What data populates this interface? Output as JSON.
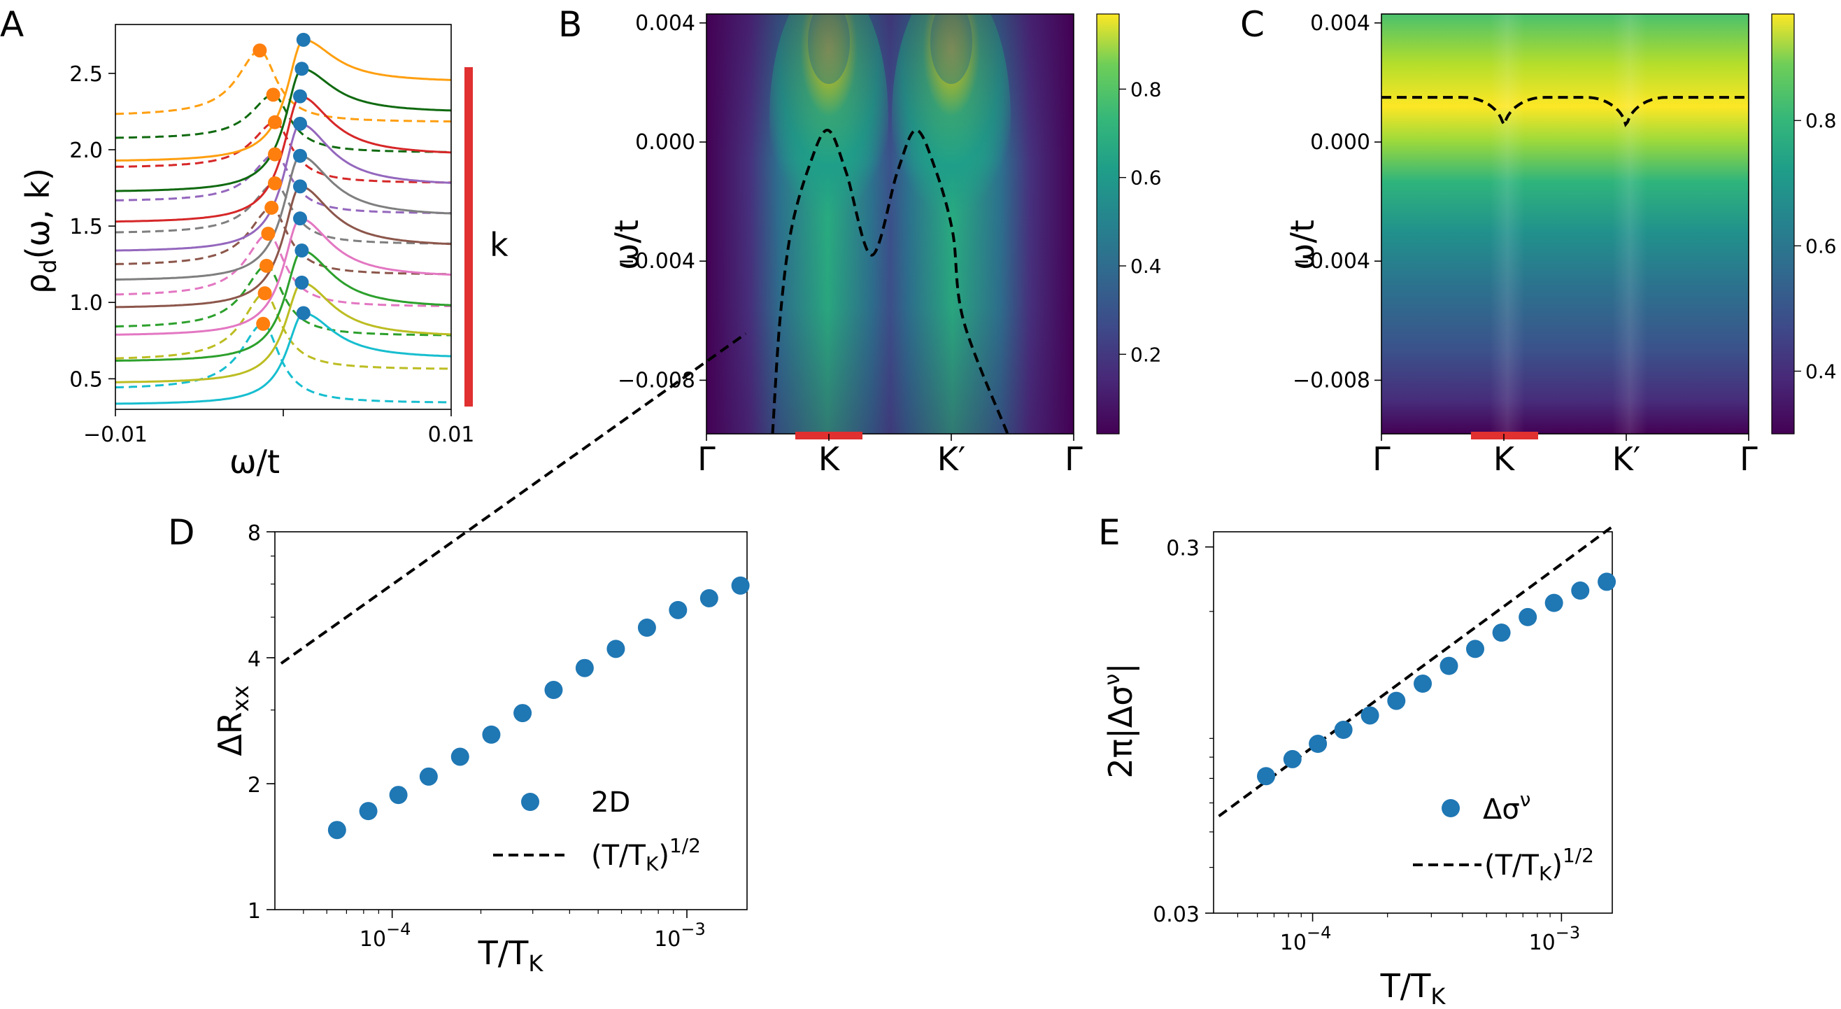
{
  "panels": [
    {
      "letter": "A",
      "chart_data": {
        "type": "line",
        "xlabel": "ω/t",
        "ylabel": "ρ_d(ω, k)",
        "xlim": [
          -0.01,
          0.01
        ],
        "ylim": [
          0.3,
          2.82
        ],
        "xticks": [
          -0.01,
          0.0,
          0.01
        ],
        "xtick_labels": [
          "−0.01",
          "0.00",
          "0.01"
        ],
        "yticks": [
          0.5,
          1.0,
          1.5,
          2.0,
          2.5
        ],
        "ytick_labels": [
          "0.5",
          "1.0",
          "1.5",
          "2.0",
          "2.5"
        ],
        "side_label": "k",
        "side_bar_color": "#e03030",
        "series": [
          {
            "color": "#17becf",
            "offset": 0.0,
            "left": 0.33,
            "right": 0.63,
            "peak_x": 0.0012,
            "peak_y": 0.93
          },
          {
            "color": "#bcbd22",
            "offset": 0.11,
            "left": 0.47,
            "right": 0.77,
            "peak_x": 0.0011,
            "peak_y": 1.13
          },
          {
            "color": "#2ca02c",
            "offset": 0.22,
            "left": 0.61,
            "right": 0.96,
            "peak_x": 0.0011,
            "peak_y": 1.34
          },
          {
            "color": "#e377c2",
            "offset": 0.33,
            "left": 0.78,
            "right": 1.16,
            "peak_x": 0.001,
            "peak_y": 1.55
          },
          {
            "color": "#8c564b",
            "offset": 0.44,
            "left": 0.96,
            "right": 1.36,
            "peak_x": 0.001,
            "peak_y": 1.76
          },
          {
            "color": "#7f7f7f",
            "offset": 0.55,
            "left": 1.14,
            "right": 1.56,
            "peak_x": 0.001,
            "peak_y": 1.96
          },
          {
            "color": "#9467bd",
            "offset": 0.66,
            "left": 1.33,
            "right": 1.76,
            "peak_x": 0.001,
            "peak_y": 2.17
          },
          {
            "color": "#d62728",
            "offset": 0.77,
            "left": 1.52,
            "right": 1.96,
            "peak_x": 0.001,
            "peak_y": 2.35
          },
          {
            "color": "#106a10",
            "offset": 0.88,
            "left": 1.72,
            "right": 2.24,
            "peak_x": 0.0011,
            "peak_y": 2.53
          },
          {
            "color": "#ff9f10",
            "offset": 0.99,
            "left": 1.92,
            "right": 2.44,
            "peak_x": 0.0012,
            "peak_y": 2.72
          }
        ],
        "dashed_series": [
          {
            "color": "#17becf",
            "left": 0.43,
            "right": 0.34,
            "peak_x": -0.0012,
            "peak_y": 0.86
          },
          {
            "color": "#bcbd22",
            "left": 0.62,
            "right": 0.56,
            "peak_x": -0.0011,
            "peak_y": 1.06
          },
          {
            "color": "#2ca02c",
            "left": 0.83,
            "right": 0.78,
            "peak_x": -0.001,
            "peak_y": 1.24
          },
          {
            "color": "#e377c2",
            "left": 1.04,
            "right": 0.97,
            "peak_x": -0.0009,
            "peak_y": 1.45
          },
          {
            "color": "#8c564b",
            "left": 1.24,
            "right": 1.18,
            "peak_x": -0.0007,
            "peak_y": 1.62
          },
          {
            "color": "#7f7f7f",
            "left": 1.45,
            "right": 1.38,
            "peak_x": -0.0005,
            "peak_y": 1.78
          },
          {
            "color": "#9467bd",
            "left": 1.66,
            "right": 1.58,
            "peak_x": -0.0005,
            "peak_y": 1.97
          },
          {
            "color": "#d62728",
            "left": 1.88,
            "right": 1.78,
            "peak_x": -0.0005,
            "peak_y": 2.18
          },
          {
            "color": "#106a10",
            "left": 2.07,
            "right": 1.98,
            "peak_x": -0.0006,
            "peak_y": 2.36
          },
          {
            "color": "#ff9f10",
            "left": 2.22,
            "right": 2.18,
            "peak_x": -0.0014,
            "peak_y": 2.65
          }
        ],
        "marker_colors": {
          "solid": "#1f77b4",
          "dashed": "#ff7f0e"
        }
      }
    },
    {
      "letter": "B",
      "chart_data": {
        "type": "heatmap",
        "ylabel": "ω/t",
        "ylim": [
          -0.0098,
          0.0043
        ],
        "yticks": [
          0.004,
          0.0,
          -0.004,
          -0.008
        ],
        "ytick_labels": [
          "0.004",
          "0.000",
          "−0.004",
          "−0.008"
        ],
        "xtick_labels": [
          "Γ",
          "K",
          "K′",
          "Γ"
        ],
        "colormap": "viridis",
        "colorbar_ticks": [
          0.2,
          0.4,
          0.6,
          0.8
        ],
        "colorbar_tick_labels": [
          "0.2",
          "0.4",
          "0.6",
          "0.8"
        ],
        "colorbar_range": [
          0.02,
          0.97
        ],
        "dashed_curve": {
          "path": "[0.18,-0.0098],[0.2,-0.006],[0.23,-0.003],[0.28,-0.0008],[0.33,0.0004],[0.38,-0.001],[0.45,-0.0038],[0.52,-0.001],[0.57,0.0004],[0.62,-0.0008],[0.67,-0.003],[0.7,-0.006],[0.82,-0.0098]"
        },
        "k_bar_color": "#e03030"
      }
    },
    {
      "letter": "C",
      "chart_data": {
        "type": "heatmap",
        "ylabel": "ω/t",
        "ylim": [
          -0.0098,
          0.0043
        ],
        "yticks": [
          0.004,
          0.0,
          -0.004,
          -0.008
        ],
        "ytick_labels": [
          "0.004",
          "0.000",
          "−0.004",
          "−0.008"
        ],
        "xtick_labels": [
          "Γ",
          "K",
          "K′",
          "Γ"
        ],
        "colormap": "viridis",
        "colorbar_ticks": [
          0.4,
          0.6,
          0.8
        ],
        "colorbar_tick_labels": [
          "0.4",
          "0.6",
          "0.8"
        ],
        "colorbar_range": [
          0.3,
          0.97
        ],
        "dashed_curve": {
          "level": 0.0015,
          "dip": 0.0004
        },
        "k_bar_color": "#e03030"
      }
    },
    {
      "letter": "D",
      "chart_data": {
        "type": "scatter",
        "xlabel": "T/T_K",
        "ylabel": "ΔR_xx",
        "xscale": "log",
        "yscale": "log",
        "xlim": [
          4e-05,
          0.0016
        ],
        "ylim": [
          1,
          8
        ],
        "yticks": [
          1,
          2,
          4,
          8
        ],
        "ytick_labels": [
          "1",
          "2",
          "4",
          "8"
        ],
        "xticks": [
          0.0001,
          0.001
        ],
        "x": [
          6.5e-05,
          8.3e-05,
          0.000105,
          0.000133,
          0.00017,
          0.000217,
          0.000277,
          0.000353,
          0.00045,
          0.000574,
          0.000732,
          0.000933,
          0.00119,
          0.00152
        ],
        "series": [
          {
            "name": "2D",
            "values": [
              1.55,
              1.72,
              1.88,
              2.08,
              2.32,
              2.62,
              2.95,
              3.35,
              3.78,
              4.2,
              4.72,
              5.2,
              5.55,
              5.95
            ],
            "color": "#1f77b4"
          },
          {
            "name": "(T/T_K)^{1/2}",
            "fit": {
              "x_range": [
                4e-05,
                0.0016
              ],
              "coef": 598.2,
              "exponent": 0.5
            },
            "style": "dashed",
            "color": "#000000"
          }
        ],
        "legend": "center-right"
      }
    },
    {
      "letter": "E",
      "chart_data": {
        "type": "scatter",
        "xlabel": "T/T_K",
        "ylabel": "2π|Δσ^ν|",
        "xscale": "log",
        "yscale": "log",
        "xlim": [
          4e-05,
          0.0016
        ],
        "ylim": [
          0.03,
          0.33
        ],
        "yticks": [
          0.3,
          0.03
        ],
        "ytick_labels": [
          "0.3",
          "0.03"
        ],
        "xticks": [
          0.0001,
          0.001
        ],
        "x": [
          6.5e-05,
          8.3e-05,
          0.000105,
          0.000133,
          0.00017,
          0.000217,
          0.000277,
          0.000353,
          0.00045,
          0.000574,
          0.000732,
          0.000933,
          0.00119,
          0.00152
        ],
        "series": [
          {
            "name": "Δσ^ν",
            "values": [
              0.071,
              0.079,
              0.087,
              0.095,
              0.104,
              0.114,
              0.127,
              0.142,
              0.158,
              0.175,
              0.193,
              0.211,
              0.228,
              0.241
            ],
            "color": "#1f77b4"
          },
          {
            "name": "(T/T_K)^{1/2}",
            "fit": {
              "x_range": [
                4e-05,
                0.0016
              ],
              "coef": 8.52,
              "exponent": 0.5
            },
            "style": "dashed",
            "color": "#000000"
          }
        ],
        "legend": "lower-right"
      }
    }
  ],
  "tick_text": {
    "pow_base": "10",
    "exp_neg4": "−4",
    "exp_neg3": "−3"
  },
  "legend": {
    "d_points": "2D",
    "e_points_main": "Δσ",
    "e_points_sup": "ν",
    "fit_main": "(T/T",
    "fit_sub": "K",
    "fit_close": ")",
    "fit_sup": "1/2"
  },
  "labels": {
    "rho_main": "ρ",
    "rho_sub": "d",
    "rho_args": "(ω, k)",
    "omega_t": "ω/t",
    "t_main": "T/T",
    "t_sub": "K",
    "dr_main": "ΔR",
    "dr_sub": "xx",
    "sig_main": "2π|Δσ",
    "sig_sup": "ν",
    "sig_close": "|"
  }
}
